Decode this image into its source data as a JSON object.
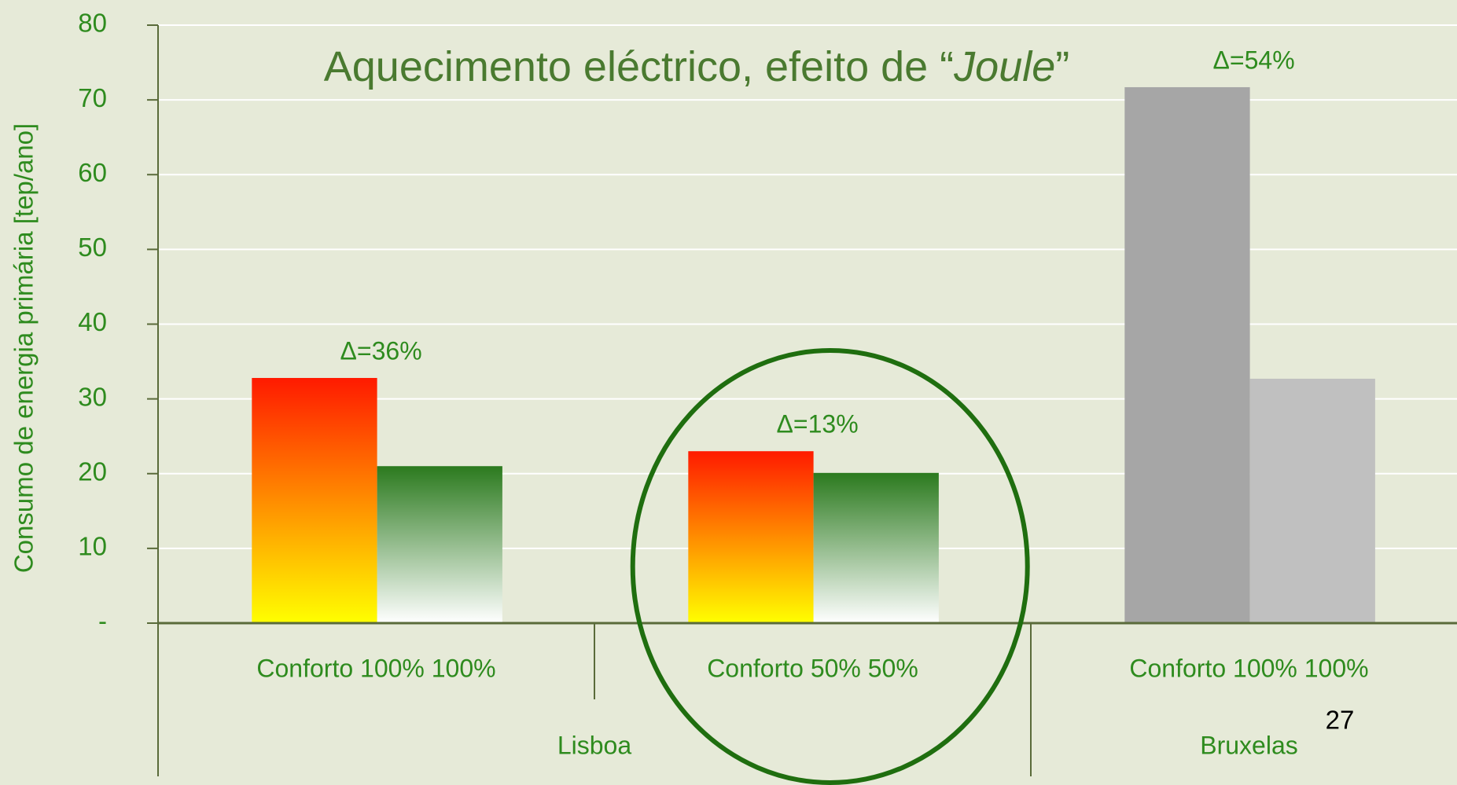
{
  "chart_data": {
    "type": "bar",
    "title_parts": [
      "Aquecimento eléctrico, efeito de “",
      "Joule",
      "”"
    ],
    "y_label": "Consumo de energia primária [tep/ano]",
    "categories": [
      "Conforto 100% 100%",
      "Conforto 50% 50%",
      "Conforto 100% 100%"
    ],
    "groups": [
      {
        "label": "Lisboa",
        "size": 2
      },
      {
        "label": "Bruxelas",
        "size": 1
      }
    ],
    "annotations": [
      "Δ=36%",
      "Δ=13%",
      "Δ=54%"
    ],
    "series": [
      {
        "values": [
          32.8,
          23,
          71.7
        ],
        "colors": [
          [
            "#ff1a00",
            "#ffff00"
          ],
          [
            "#ff1a00",
            "#ffff00"
          ],
          "#a6a6a6"
        ]
      },
      {
        "values": [
          21,
          20.1,
          32.7
        ],
        "colors": [
          [
            "#2b7a1e",
            "#ffffff"
          ],
          [
            "#2b7a1e",
            "#ffffff"
          ],
          "#c0c0c0"
        ]
      }
    ],
    "ylim": [
      0,
      80
    ],
    "yticks": [
      {
        "value": 0,
        "label": "-"
      },
      10,
      20,
      30,
      40,
      50,
      60,
      70,
      80
    ],
    "grid": true,
    "highlight_category": 1,
    "page_number": "27"
  }
}
